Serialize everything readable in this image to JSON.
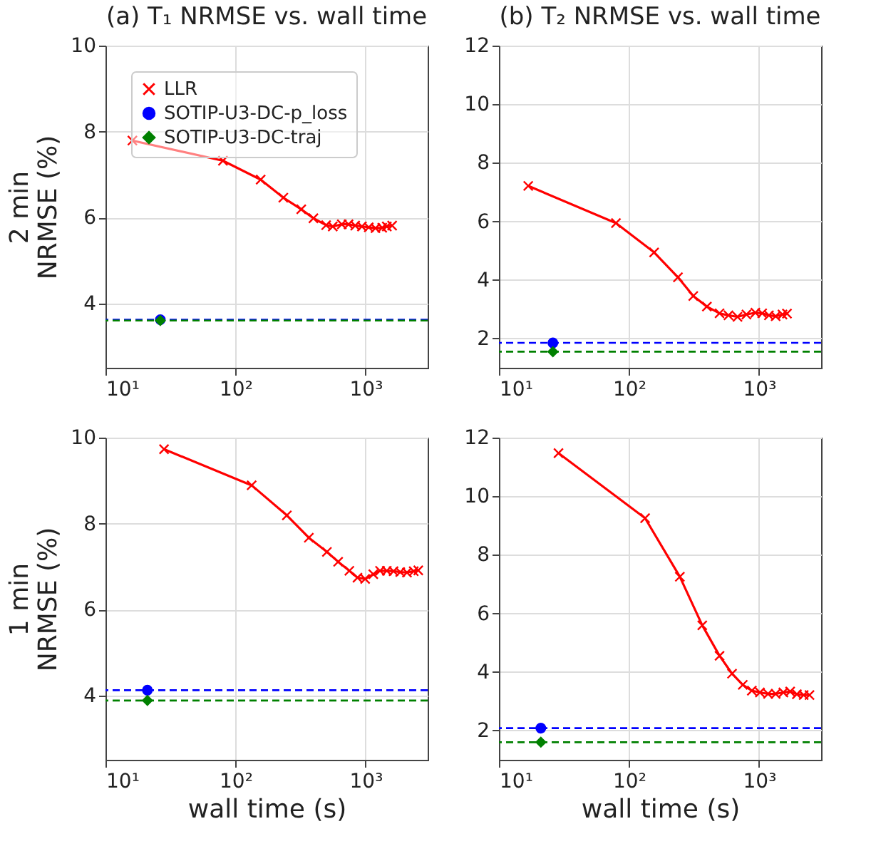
{
  "chart_data": [
    {
      "type": "line",
      "title": "(a) T₁ NRMSE vs. wall time",
      "ylabel": "2 min\nNRMSE (%)",
      "log": "x",
      "grid": true,
      "legend": "top left",
      "xlim": [
        10,
        3000
      ],
      "xticks": [
        {
          "value": 10,
          "label": "10¹"
        },
        {
          "value": 100,
          "label": "10²"
        },
        {
          "value": 1000,
          "label": "10³"
        }
      ],
      "ylim": [
        2.5,
        10
      ],
      "yticks": [
        4,
        6,
        8,
        10
      ],
      "series": [
        {
          "name": "LLR",
          "marker": "cross",
          "color": "#ff0000",
          "x": [
            16.1,
            80,
            156,
            233,
            320,
            397,
            497,
            559,
            656,
            739,
            832,
            937,
            1057,
            1191,
            1342,
            1455,
            1600
          ],
          "values": [
            7.79,
            7.32,
            6.88,
            6.46,
            6.19,
            5.98,
            5.82,
            5.79,
            5.84,
            5.84,
            5.81,
            5.79,
            5.77,
            5.75,
            5.76,
            5.79,
            5.81
          ]
        },
        {
          "name": "SOTIP-U3-DC-p_loss",
          "type": "scatter",
          "marker": "circle",
          "color": "#0000ff",
          "x": [
            26.4
          ],
          "values": [
            3.62
          ]
        },
        {
          "name": "SOTIP-U3-DC-traj",
          "type": "scatter",
          "marker": "diamond",
          "color": "#008000",
          "x": [
            26.4
          ],
          "values": [
            3.6
          ]
        }
      ],
      "ref_lines": [
        {
          "axis": "y",
          "value": 3.62,
          "color": "#0000ff",
          "line_style": "dashed"
        },
        {
          "axis": "y",
          "value": 3.6,
          "color": "#008000",
          "line_style": "dashed"
        }
      ]
    },
    {
      "type": "line",
      "title": "(b) T₂ NRMSE vs. wall time",
      "log": "x",
      "grid": true,
      "xlim": [
        10,
        3000
      ],
      "xticks": [
        {
          "value": 10,
          "label": "10¹"
        },
        {
          "value": 100,
          "label": "10²"
        },
        {
          "value": 1000,
          "label": "10³"
        }
      ],
      "ylim": [
        1,
        12
      ],
      "yticks": [
        2,
        4,
        6,
        8,
        10,
        12
      ],
      "series": [
        {
          "marker": "cross",
          "color": "#ff0000",
          "x": [
            16.8,
            79.4,
            156,
            238,
            312,
            397,
            497,
            582,
            683,
            800,
            937,
            1057,
            1191,
            1342,
            1514,
            1640
          ],
          "values": [
            7.21,
            5.94,
            4.94,
            4.09,
            3.45,
            3.09,
            2.86,
            2.79,
            2.74,
            2.82,
            2.88,
            2.86,
            2.79,
            2.76,
            2.82,
            2.85
          ]
        },
        {
          "type": "scatter",
          "marker": "circle",
          "color": "#0000ff",
          "x": [
            26.0
          ],
          "values": [
            1.85
          ]
        },
        {
          "type": "scatter",
          "marker": "diamond",
          "color": "#008000",
          "x": [
            26.0
          ],
          "values": [
            1.55
          ]
        }
      ],
      "ref_lines": [
        {
          "axis": "y",
          "value": 1.85,
          "color": "#0000ff",
          "line_style": "dashed"
        },
        {
          "axis": "y",
          "value": 1.55,
          "color": "#008000",
          "line_style": "dashed"
        }
      ]
    },
    {
      "type": "line",
      "xlabel": "wall time (s)",
      "ylabel": "1 min\nNRMSE (%)",
      "log": "x",
      "grid": true,
      "xlim": [
        10,
        3000
      ],
      "xticks": [
        {
          "value": 10,
          "label": "10¹"
        },
        {
          "value": 100,
          "label": "10²"
        },
        {
          "value": 1000,
          "label": "10³"
        }
      ],
      "ylim": [
        2.5,
        10
      ],
      "yticks": [
        4,
        6,
        8,
        10
      ],
      "series": [
        {
          "marker": "cross",
          "color": "#ff0000",
          "x": [
            28.2,
            133,
            248,
            366,
            504,
            615,
            750,
            866,
            992,
            1146,
            1291,
            1455,
            1640,
            1846,
            2080,
            2344,
            2541
          ],
          "values": [
            9.73,
            8.89,
            8.19,
            7.67,
            7.34,
            7.11,
            6.9,
            6.74,
            6.71,
            6.82,
            6.9,
            6.9,
            6.89,
            6.87,
            6.86,
            6.89,
            6.91
          ]
        },
        {
          "type": "scatter",
          "marker": "circle",
          "color": "#0000ff",
          "x": [
            21.0
          ],
          "values": [
            4.12
          ]
        },
        {
          "type": "scatter",
          "marker": "diamond",
          "color": "#008000",
          "x": [
            21.0
          ],
          "values": [
            3.88
          ]
        }
      ],
      "ref_lines": [
        {
          "axis": "y",
          "value": 4.12,
          "color": "#0000ff",
          "line_style": "dashed"
        },
        {
          "axis": "y",
          "value": 3.88,
          "color": "#008000",
          "line_style": "dashed"
        }
      ]
    },
    {
      "type": "line",
      "xlabel": "wall time (s)",
      "log": "x",
      "grid": true,
      "xlim": [
        10,
        3000
      ],
      "xticks": [
        {
          "value": 10,
          "label": "10¹"
        },
        {
          "value": 100,
          "label": "10²"
        },
        {
          "value": 1000,
          "label": "10³"
        }
      ],
      "ylim": [
        1,
        12
      ],
      "yticks": [
        2,
        4,
        6,
        8,
        10,
        12
      ],
      "series": [
        {
          "marker": "cross",
          "color": "#ff0000",
          "x": [
            28.7,
            133,
            246,
            366,
            497,
            620,
            750,
            880,
            1016,
            1173,
            1342,
            1538,
            1734,
            1954,
            2203,
            2443
          ],
          "values": [
            11.47,
            9.25,
            7.25,
            5.59,
            4.55,
            3.94,
            3.56,
            3.36,
            3.3,
            3.25,
            3.25,
            3.3,
            3.33,
            3.24,
            3.21,
            3.21
          ]
        },
        {
          "type": "scatter",
          "marker": "circle",
          "color": "#0000ff",
          "x": [
            21.0
          ],
          "values": [
            2.08
          ]
        },
        {
          "type": "scatter",
          "marker": "diamond",
          "color": "#008000",
          "x": [
            21.0
          ],
          "values": [
            1.6
          ]
        }
      ],
      "ref_lines": [
        {
          "axis": "y",
          "value": 2.08,
          "color": "#0000ff",
          "line_style": "dashed"
        },
        {
          "axis": "y",
          "value": 1.6,
          "color": "#008000",
          "line_style": "dashed"
        }
      ]
    }
  ]
}
